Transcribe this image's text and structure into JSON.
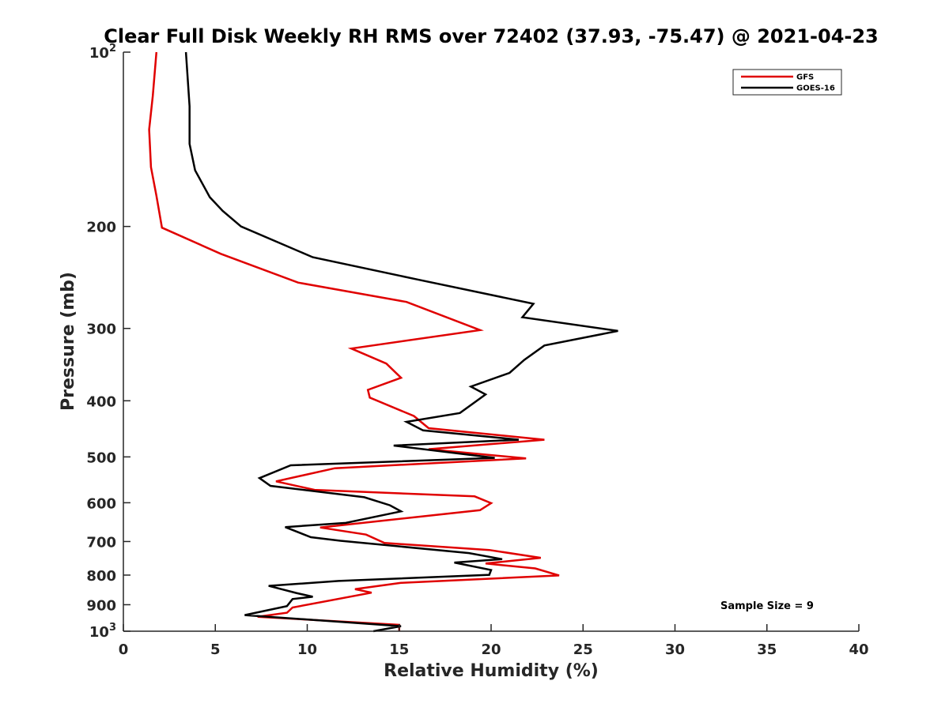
{
  "chart_data": {
    "type": "line",
    "title": "Clear Full Disk Weekly RH RMS over 72402 (37.93, -75.47) @ 2021-04-23",
    "xlabel": "Relative Humidity (%)",
    "ylabel": "Pressure (mb)",
    "xlim": [
      0,
      40
    ],
    "ylim": [
      100,
      1000
    ],
    "yscale": "log",
    "y_reversed": true,
    "grid": false,
    "legend_location": "top-right",
    "x_ticks": [
      {
        "value": 0,
        "label": "0"
      },
      {
        "value": 5,
        "label": "5"
      },
      {
        "value": 10,
        "label": "10"
      },
      {
        "value": 15,
        "label": "15"
      },
      {
        "value": 20,
        "label": "20"
      },
      {
        "value": 25,
        "label": "25"
      },
      {
        "value": 30,
        "label": "30"
      },
      {
        "value": 35,
        "label": "35"
      },
      {
        "value": 40,
        "label": "40"
      }
    ],
    "y_ticks": [
      {
        "value": 100,
        "label": "10",
        "sup": "2"
      },
      {
        "value": 200,
        "label": "200",
        "sup": ""
      },
      {
        "value": 300,
        "label": "300",
        "sup": ""
      },
      {
        "value": 400,
        "label": "400",
        "sup": ""
      },
      {
        "value": 500,
        "label": "500",
        "sup": ""
      },
      {
        "value": 600,
        "label": "600",
        "sup": ""
      },
      {
        "value": 700,
        "label": "700",
        "sup": ""
      },
      {
        "value": 800,
        "label": "800",
        "sup": ""
      },
      {
        "value": 900,
        "label": "900",
        "sup": ""
      },
      {
        "value": 1000,
        "label": "10",
        "sup": "3"
      }
    ],
    "annotation": "Sample Size = 9",
    "series": [
      {
        "name": "GFS",
        "color": "#e00000",
        "points": [
          [
            1.8,
            100
          ],
          [
            1.6,
            119
          ],
          [
            1.4,
            136
          ],
          [
            1.5,
            158
          ],
          [
            1.8,
            177
          ],
          [
            2.1,
            201
          ],
          [
            5.3,
            223
          ],
          [
            9.5,
            250
          ],
          [
            15.4,
            270
          ],
          [
            19.4,
            302
          ],
          [
            12.4,
            325
          ],
          [
            14.3,
            345
          ],
          [
            15.1,
            365
          ],
          [
            13.3,
            383
          ],
          [
            13.4,
            395
          ],
          [
            15.8,
            425
          ],
          [
            16.6,
            446
          ],
          [
            22.9,
            467
          ],
          [
            16.6,
            485
          ],
          [
            21.9,
            503
          ],
          [
            11.5,
            523
          ],
          [
            8.3,
            551
          ],
          [
            10.4,
            570
          ],
          [
            19.1,
            585
          ],
          [
            20.0,
            601
          ],
          [
            19.4,
            618
          ],
          [
            10.7,
            662
          ],
          [
            13.2,
            681
          ],
          [
            14.2,
            704
          ],
          [
            19.9,
            724
          ],
          [
            22.7,
            747
          ],
          [
            19.7,
            764
          ],
          [
            22.4,
            779
          ],
          [
            23.7,
            801
          ],
          [
            15.1,
            825
          ],
          [
            12.6,
            846
          ],
          [
            13.5,
            858
          ],
          [
            9.2,
            910
          ],
          [
            8.9,
            929
          ],
          [
            7.3,
            944
          ],
          [
            15.0,
            975
          ],
          [
            15.0,
            1000
          ]
        ]
      },
      {
        "name": "GOES-16",
        "color": "#000000",
        "points": [
          [
            3.4,
            100
          ],
          [
            3.6,
            124
          ],
          [
            3.6,
            144
          ],
          [
            3.9,
            160
          ],
          [
            4.7,
            178
          ],
          [
            5.4,
            188
          ],
          [
            6.4,
            200
          ],
          [
            10.3,
            226
          ],
          [
            16.0,
            247
          ],
          [
            22.3,
            272
          ],
          [
            21.7,
            287
          ],
          [
            26.9,
            303
          ],
          [
            22.9,
            321
          ],
          [
            21.8,
            340
          ],
          [
            21.0,
            358
          ],
          [
            18.9,
            378
          ],
          [
            19.7,
            390
          ],
          [
            18.3,
            420
          ],
          [
            15.4,
            435
          ],
          [
            16.3,
            450
          ],
          [
            21.5,
            467
          ],
          [
            14.7,
            478
          ],
          [
            20.2,
            502
          ],
          [
            9.1,
            517
          ],
          [
            7.4,
            544
          ],
          [
            8.0,
            561
          ],
          [
            13.1,
            587
          ],
          [
            14.5,
            606
          ],
          [
            15.1,
            621
          ],
          [
            12.1,
            650
          ],
          [
            8.8,
            661
          ],
          [
            10.2,
            688
          ],
          [
            11.8,
            698
          ],
          [
            18.8,
            733
          ],
          [
            20.6,
            751
          ],
          [
            18.0,
            761
          ],
          [
            20.0,
            784
          ],
          [
            19.9,
            799
          ],
          [
            11.7,
            819
          ],
          [
            7.9,
            835
          ],
          [
            9.4,
            859
          ],
          [
            10.3,
            872
          ],
          [
            9.2,
            880
          ],
          [
            8.9,
            905
          ],
          [
            6.6,
            938
          ],
          [
            15.1,
            980
          ],
          [
            13.6,
            1000
          ]
        ]
      }
    ]
  }
}
